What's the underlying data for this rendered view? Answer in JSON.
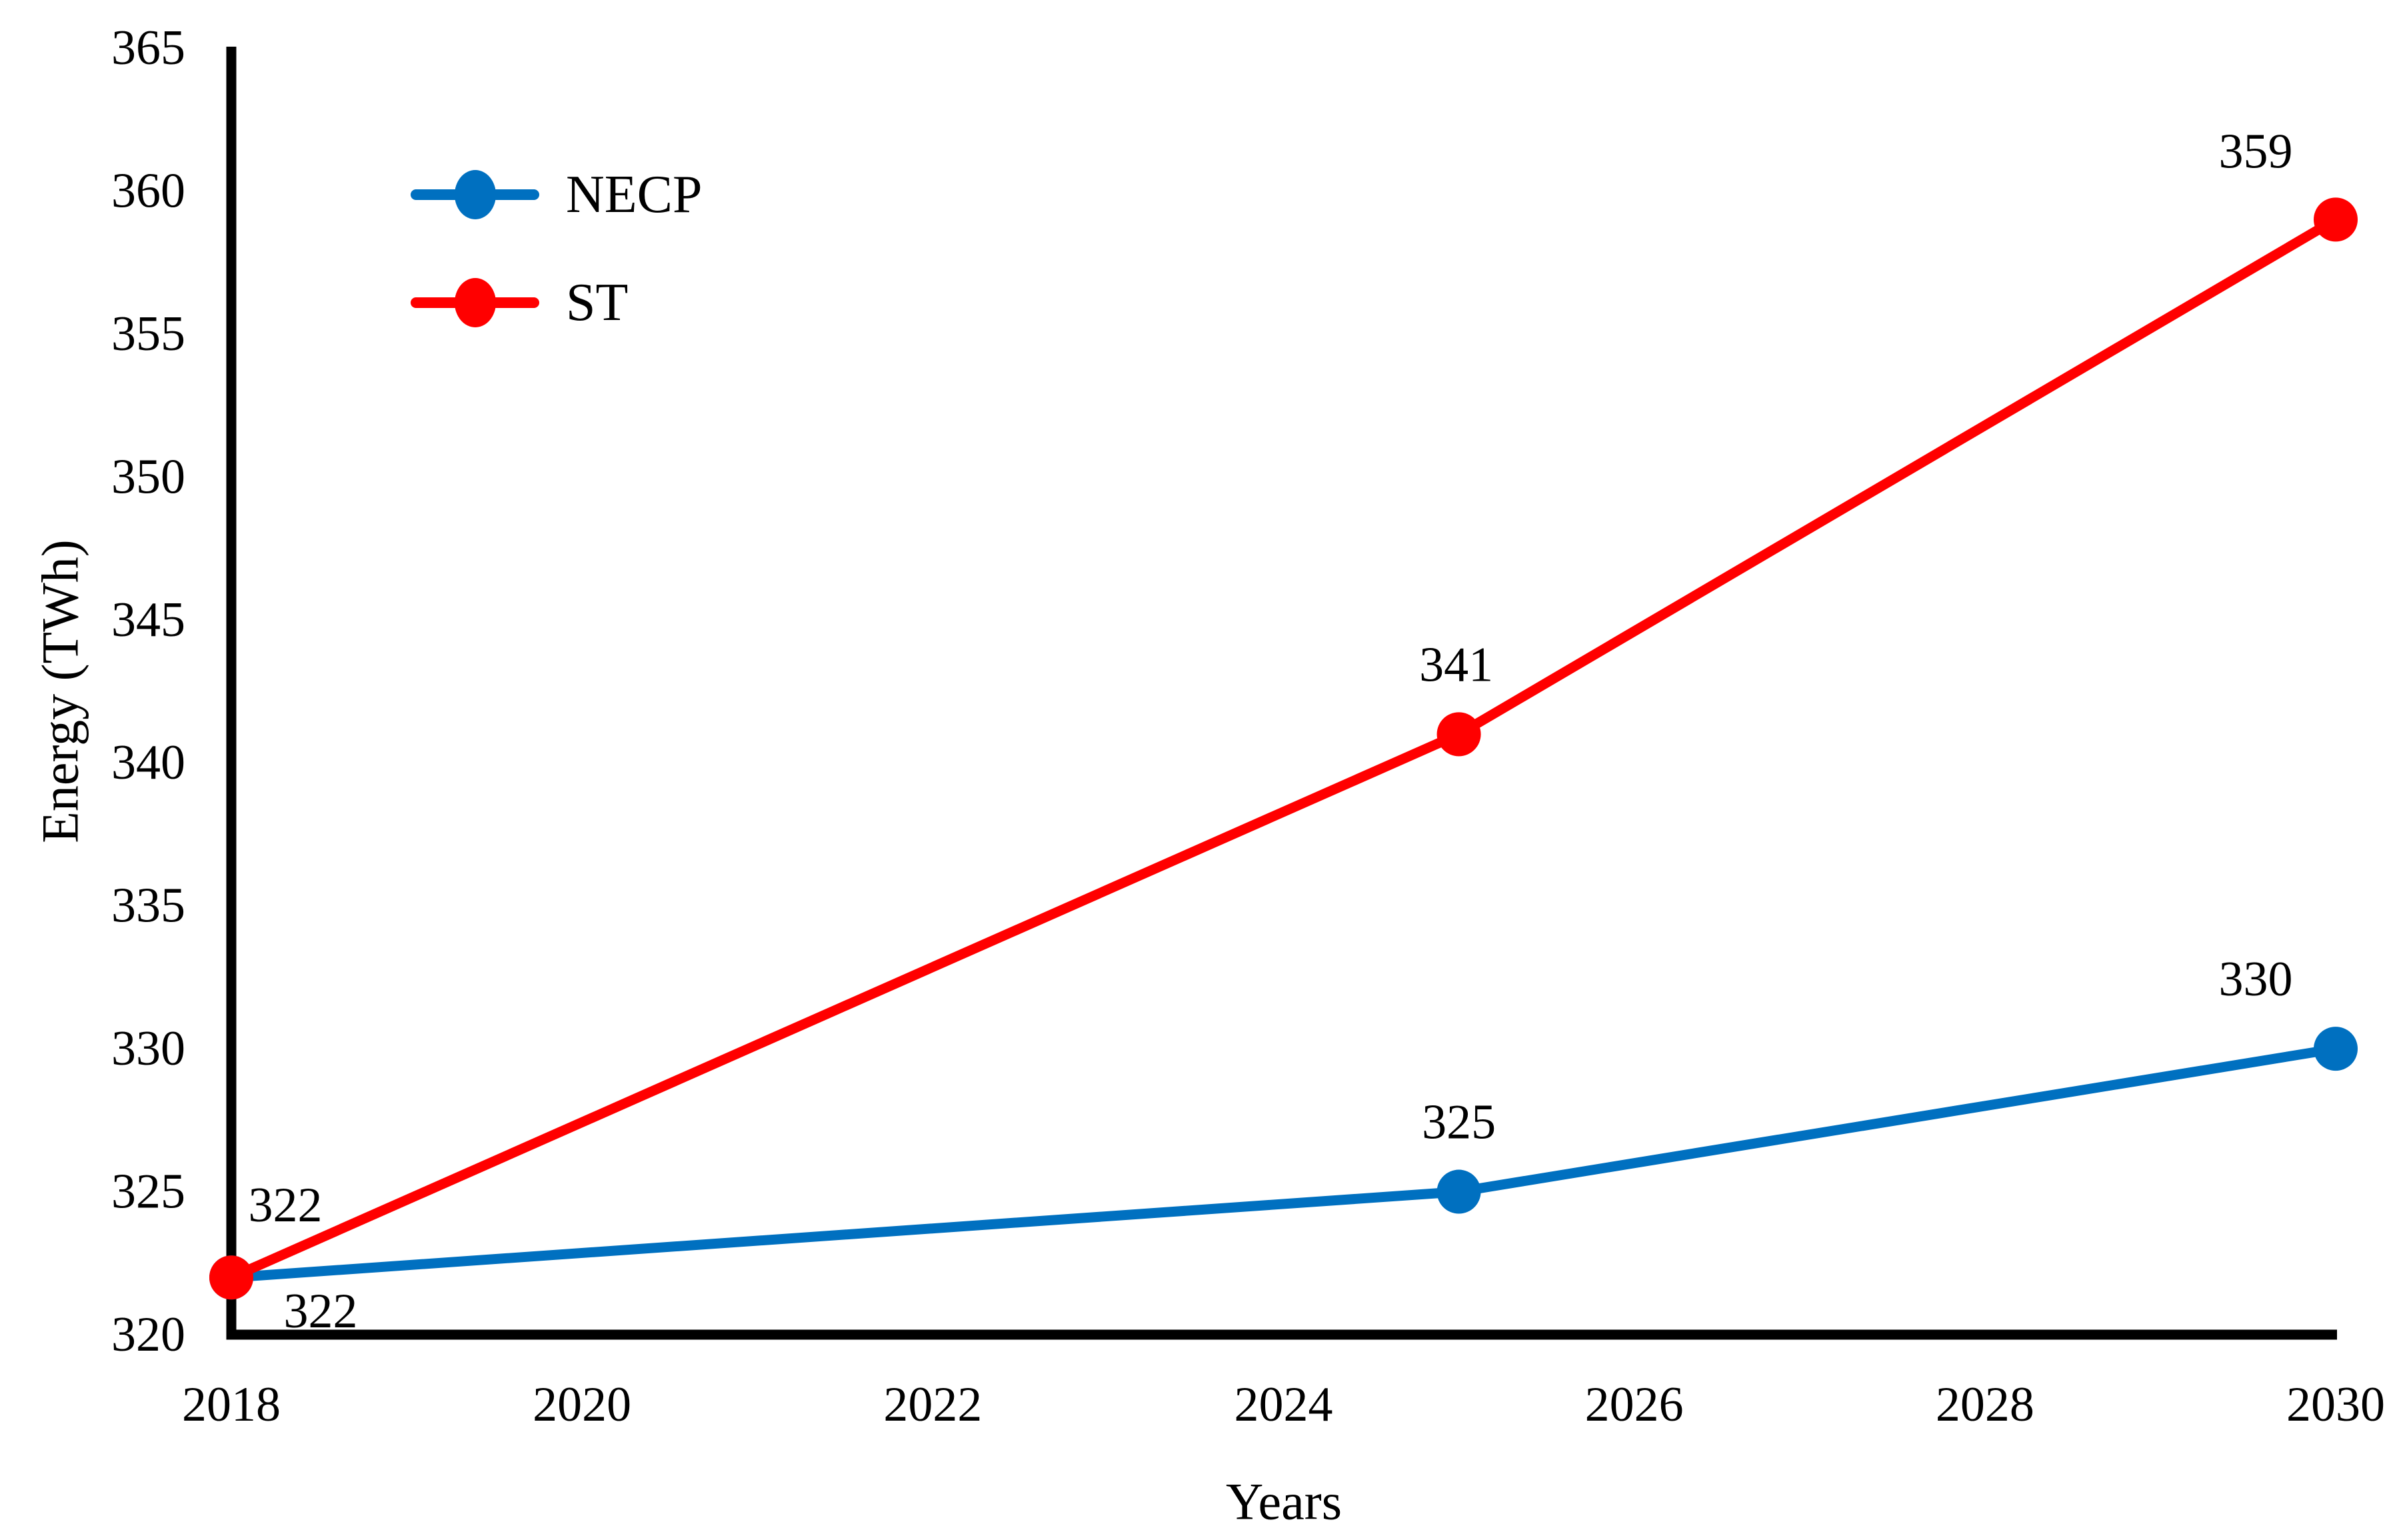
{
  "chart_data": {
    "type": "line",
    "title": "",
    "xlabel": "Years",
    "ylabel": "Energy (TWh)",
    "x": [
      2018,
      2025,
      2030
    ],
    "xlim": [
      2018,
      2030
    ],
    "ylim": [
      320,
      365
    ],
    "xticks": [
      2018,
      2020,
      2022,
      2024,
      2026,
      2028,
      2030
    ],
    "yticks": [
      320,
      325,
      330,
      335,
      340,
      345,
      350,
      355,
      360,
      365
    ],
    "grid": false,
    "legend_position": "top-left",
    "data_labels_shown": true,
    "axis_color": "#000000",
    "text_color": "#000000",
    "series": [
      {
        "name": "NECP",
        "color": "#0070C0",
        "values": [
          322,
          325,
          330
        ],
        "data_labels": [
          "322",
          "325",
          "330"
        ],
        "label_offsets": [
          [
            134,
            51
          ],
          [
            0,
            -104
          ],
          [
            -120,
            -104
          ]
        ]
      },
      {
        "name": "ST",
        "color": "#FF0000",
        "values": [
          322,
          341,
          359
        ],
        "data_labels": [
          "322",
          "341",
          "359"
        ],
        "label_offsets": [
          [
            81,
            -108
          ],
          [
            -4,
            -104
          ],
          [
            -120,
            -102
          ]
        ]
      }
    ]
  }
}
